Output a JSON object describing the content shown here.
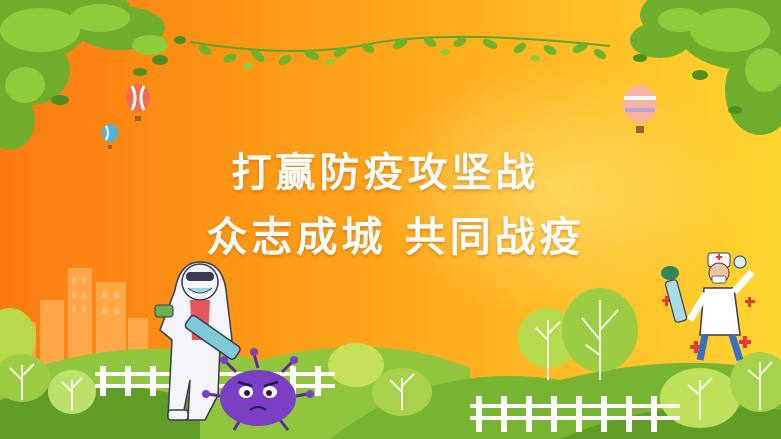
{
  "headline": {
    "line1": "打赢防疫攻坚战",
    "line2": "众志成城 共同战疫"
  },
  "colors": {
    "background_left": "#fb7a12",
    "background_right": "#ffd631",
    "leaf_green": "#5ea62a",
    "grass_green": "#7fbf3a",
    "virus_purple": "#7b3fc4"
  },
  "illustrations": [
    "hanging-vine-garland",
    "tree-foliage-top-left",
    "tree-foliage-top-right",
    "hot-air-balloons",
    "city-skyline",
    "protective-suit-worker",
    "virus-character",
    "doctor-with-syringe",
    "white-fence",
    "green-hills",
    "round-trees"
  ]
}
